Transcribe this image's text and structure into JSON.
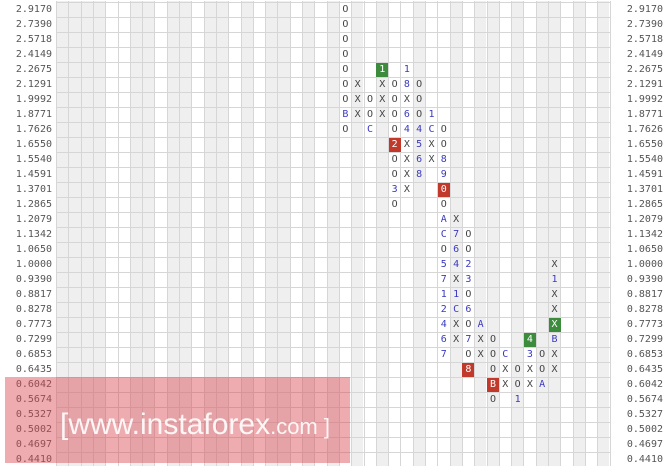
{
  "chart_data": {
    "type": "point-and-figure",
    "price_levels": [
      "2.9170",
      "2.7390",
      "2.5718",
      "2.4149",
      "2.2675",
      "2.1291",
      "1.9992",
      "1.8771",
      "1.7626",
      "1.6550",
      "1.5540",
      "1.4591",
      "1.3701",
      "1.2865",
      "1.2079",
      "1.1342",
      "1.0650",
      "1.0000",
      "0.9390",
      "0.8817",
      "0.8278",
      "0.7773",
      "0.7299",
      "0.6853",
      "0.6435",
      "0.6042",
      "0.5674",
      "0.5327",
      "0.5002",
      "0.4697",
      "0.4410"
    ],
    "columns": [
      {
        "n": 23,
        "cells": [
          [
            "2.9170",
            "O"
          ],
          [
            "2.7390",
            "O"
          ],
          [
            "2.5718",
            "O"
          ],
          [
            "2.4149",
            "O"
          ],
          [
            "2.2675",
            "O"
          ],
          [
            "2.1291",
            "O"
          ],
          [
            "1.9992",
            "O"
          ],
          [
            "1.8771",
            "B"
          ],
          [
            "1.7626",
            "O"
          ]
        ]
      },
      {
        "n": 24,
        "cells": [
          [
            "2.1291",
            "X"
          ],
          [
            "1.9992",
            "X"
          ],
          [
            "1.8771",
            "X"
          ]
        ]
      },
      {
        "n": 25,
        "cells": [
          [
            "1.9992",
            "O"
          ],
          [
            "1.8771",
            "O"
          ],
          [
            "1.7626",
            "C"
          ]
        ]
      },
      {
        "n": 26,
        "cells": [
          [
            "2.2675",
            "1",
            "green"
          ],
          [
            "2.1291",
            "X"
          ],
          [
            "1.9992",
            "X"
          ],
          [
            "1.8771",
            "X"
          ]
        ]
      },
      {
        "n": 27,
        "cells": [
          [
            "2.1291",
            "O"
          ],
          [
            "1.9992",
            "O"
          ],
          [
            "1.8771",
            "O"
          ],
          [
            "1.7626",
            "O"
          ],
          [
            "1.6550",
            "2",
            "red"
          ],
          [
            "1.5540",
            "O"
          ],
          [
            "1.4591",
            "O"
          ],
          [
            "1.3701",
            "3"
          ],
          [
            "1.2865",
            "O"
          ]
        ]
      },
      {
        "n": 28,
        "cells": [
          [
            "2.2675",
            "1"
          ],
          [
            "2.1291",
            "8"
          ],
          [
            "1.9992",
            "X"
          ],
          [
            "1.8771",
            "6"
          ],
          [
            "1.7626",
            "4"
          ],
          [
            "1.6550",
            "X"
          ],
          [
            "1.5540",
            "X"
          ],
          [
            "1.4591",
            "X"
          ],
          [
            "1.3701",
            "X"
          ]
        ]
      },
      {
        "n": 29,
        "cells": [
          [
            "2.1291",
            "O"
          ],
          [
            "1.9992",
            "O"
          ],
          [
            "1.8771",
            "O"
          ],
          [
            "1.7626",
            "4"
          ],
          [
            "1.6550",
            "5"
          ],
          [
            "1.5540",
            "6"
          ],
          [
            "1.4591",
            "8"
          ]
        ]
      },
      {
        "n": 30,
        "cells": [
          [
            "1.8771",
            "1"
          ],
          [
            "1.7626",
            "C"
          ],
          [
            "1.6550",
            "X"
          ],
          [
            "1.5540",
            "X"
          ]
        ]
      },
      {
        "n": 31,
        "cells": [
          [
            "1.7626",
            "O"
          ],
          [
            "1.6550",
            "O"
          ],
          [
            "1.5540",
            "8"
          ],
          [
            "1.4591",
            "9"
          ],
          [
            "1.3701",
            "0",
            "red"
          ],
          [
            "1.2865",
            "O"
          ],
          [
            "1.2079",
            "A"
          ],
          [
            "1.1342",
            "C"
          ],
          [
            "1.0650",
            "O"
          ],
          [
            "1.0000",
            "5"
          ],
          [
            "0.9390",
            "7"
          ],
          [
            "0.8817",
            "1"
          ],
          [
            "0.8278",
            "2"
          ],
          [
            "0.7773",
            "4"
          ],
          [
            "0.7299",
            "6"
          ],
          [
            "0.6853",
            "7"
          ]
        ]
      },
      {
        "n": 32,
        "cells": [
          [
            "1.2079",
            "X"
          ],
          [
            "1.1342",
            "7"
          ],
          [
            "1.0650",
            "6"
          ],
          [
            "1.0000",
            "4"
          ],
          [
            "0.9390",
            "X"
          ],
          [
            "0.8817",
            "1"
          ],
          [
            "0.8278",
            "C"
          ],
          [
            "0.7773",
            "X"
          ],
          [
            "0.7299",
            "X"
          ]
        ]
      },
      {
        "n": 33,
        "cells": [
          [
            "1.1342",
            "O"
          ],
          [
            "1.0650",
            "O"
          ],
          [
            "1.0000",
            "2"
          ],
          [
            "0.9390",
            "3"
          ],
          [
            "0.8817",
            "O"
          ],
          [
            "0.8278",
            "6"
          ],
          [
            "0.7773",
            "O"
          ],
          [
            "0.7299",
            "7"
          ],
          [
            "0.6853",
            "O"
          ],
          [
            "0.6435",
            "8",
            "red"
          ]
        ]
      },
      {
        "n": 34,
        "cells": [
          [
            "0.7773",
            "A"
          ],
          [
            "0.7299",
            "X"
          ],
          [
            "0.6853",
            "X"
          ]
        ]
      },
      {
        "n": 35,
        "cells": [
          [
            "0.7299",
            "O"
          ],
          [
            "0.6853",
            "O"
          ],
          [
            "0.6435",
            "O"
          ],
          [
            "0.6042",
            "B",
            "red"
          ],
          [
            "0.5674",
            "O"
          ]
        ]
      },
      {
        "n": 36,
        "cells": [
          [
            "0.6853",
            "C"
          ],
          [
            "0.6435",
            "X"
          ],
          [
            "0.6042",
            "X"
          ]
        ]
      },
      {
        "n": 37,
        "cells": [
          [
            "0.6435",
            "O"
          ],
          [
            "0.6042",
            "O"
          ],
          [
            "0.5674",
            "1"
          ]
        ]
      },
      {
        "n": 38,
        "cells": [
          [
            "0.7299",
            "4",
            "green"
          ],
          [
            "0.6853",
            "3"
          ],
          [
            "0.6435",
            "X"
          ],
          [
            "0.6042",
            "X"
          ]
        ]
      },
      {
        "n": 39,
        "cells": [
          [
            "0.6853",
            "O"
          ],
          [
            "0.6435",
            "O"
          ],
          [
            "0.6042",
            "A"
          ]
        ]
      },
      {
        "n": 40,
        "cells": [
          [
            "1.0000",
            "X"
          ],
          [
            "0.9390",
            "1"
          ],
          [
            "0.8817",
            "X"
          ],
          [
            "0.8278",
            "X"
          ],
          [
            "0.7773",
            "X",
            "green"
          ],
          [
            "0.7299",
            "B"
          ],
          [
            "0.6853",
            "X"
          ],
          [
            "0.6435",
            "X"
          ]
        ]
      }
    ],
    "grid": true,
    "colors": {
      "up_down_marks": "#444444",
      "month_digits": "#3a3ac0",
      "highlight_green": "#3d8b3d",
      "highlight_red": "#c0392b"
    }
  },
  "watermark": {
    "main": "[www.instaforex",
    "suffix": ".com ]"
  }
}
